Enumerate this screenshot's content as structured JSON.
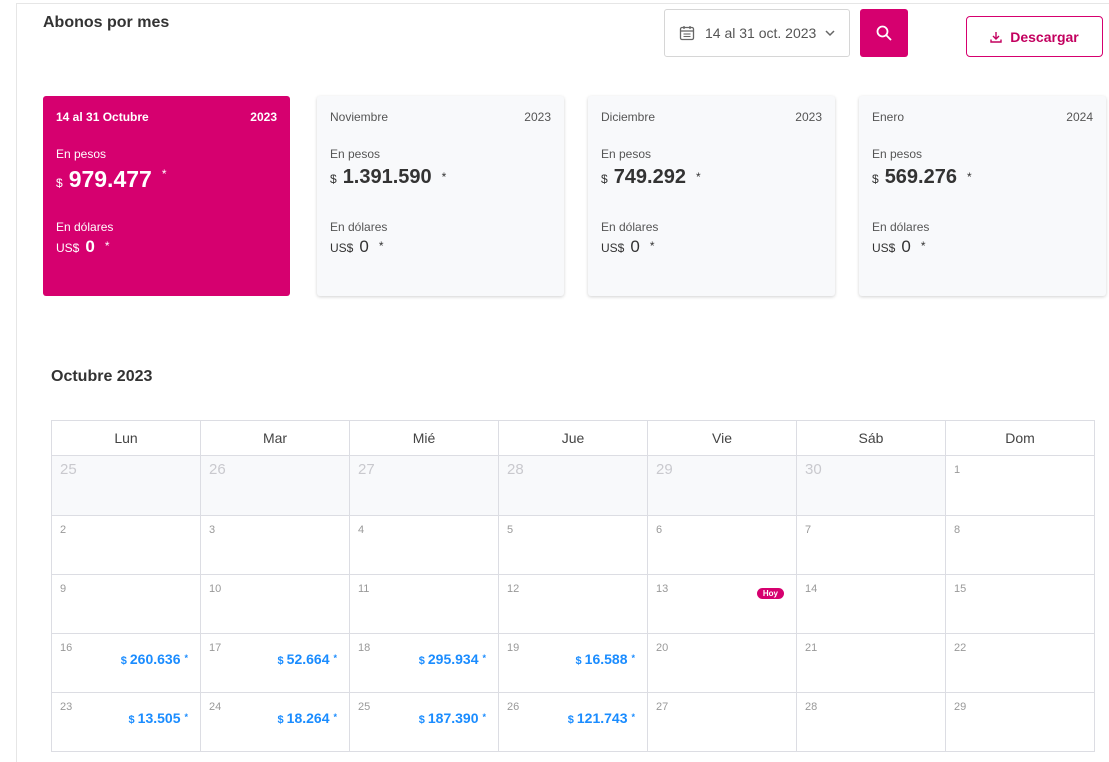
{
  "header": {
    "title": "Abonos por mes",
    "date_range": "14 al 31 oct. 2023",
    "download_label": "Descargar"
  },
  "colors": {
    "accent": "#d6006f",
    "value_blue": "#1a8cff"
  },
  "cards": [
    {
      "month": "14 al 31 Octubre",
      "year": "2023",
      "pesos_label": "En pesos",
      "pesos_currency": "$",
      "pesos_value": "979.477",
      "dollars_label": "En dólares",
      "dollars_currency": "US$",
      "dollars_value": "0",
      "asterisk": "*"
    },
    {
      "month": "Noviembre",
      "year": "2023",
      "pesos_label": "En pesos",
      "pesos_currency": "$",
      "pesos_value": "1.391.590",
      "dollars_label": "En dólares",
      "dollars_currency": "US$",
      "dollars_value": "0",
      "asterisk": "*"
    },
    {
      "month": "Diciembre",
      "year": "2023",
      "pesos_label": "En pesos",
      "pesos_currency": "$",
      "pesos_value": "749.292",
      "dollars_label": "En dólares",
      "dollars_currency": "US$",
      "dollars_value": "0",
      "asterisk": "*"
    },
    {
      "month": "Enero",
      "year": "2024",
      "pesos_label": "En pesos",
      "pesos_currency": "$",
      "pesos_value": "569.276",
      "dollars_label": "En dólares",
      "dollars_currency": "US$",
      "dollars_value": "0",
      "asterisk": "*"
    }
  ],
  "calendar": {
    "title": "Octubre 2023",
    "today_label": "Hoy",
    "currency": "$",
    "asterisk": "*",
    "weekdays": [
      "Lun",
      "Mar",
      "Mié",
      "Jue",
      "Vie",
      "Sáb",
      "Dom"
    ],
    "weeks": [
      [
        {
          "day": "25",
          "other": true
        },
        {
          "day": "26",
          "other": true
        },
        {
          "day": "27",
          "other": true
        },
        {
          "day": "28",
          "other": true
        },
        {
          "day": "29",
          "other": true
        },
        {
          "day": "30",
          "other": true
        },
        {
          "day": "1"
        }
      ],
      [
        {
          "day": "2"
        },
        {
          "day": "3"
        },
        {
          "day": "4"
        },
        {
          "day": "5"
        },
        {
          "day": "6"
        },
        {
          "day": "7"
        },
        {
          "day": "8"
        }
      ],
      [
        {
          "day": "9"
        },
        {
          "day": "10"
        },
        {
          "day": "11"
        },
        {
          "day": "12"
        },
        {
          "day": "13",
          "today": true
        },
        {
          "day": "14"
        },
        {
          "day": "15"
        }
      ],
      [
        {
          "day": "16",
          "value": "260.636"
        },
        {
          "day": "17",
          "value": "52.664"
        },
        {
          "day": "18",
          "value": "295.934"
        },
        {
          "day": "19",
          "value": "16.588"
        },
        {
          "day": "20"
        },
        {
          "day": "21"
        },
        {
          "day": "22"
        }
      ],
      [
        {
          "day": "23",
          "value": "13.505"
        },
        {
          "day": "24",
          "value": "18.264"
        },
        {
          "day": "25",
          "value": "187.390"
        },
        {
          "day": "26",
          "value": "121.743"
        },
        {
          "day": "27"
        },
        {
          "day": "28"
        },
        {
          "day": "29"
        }
      ]
    ]
  }
}
